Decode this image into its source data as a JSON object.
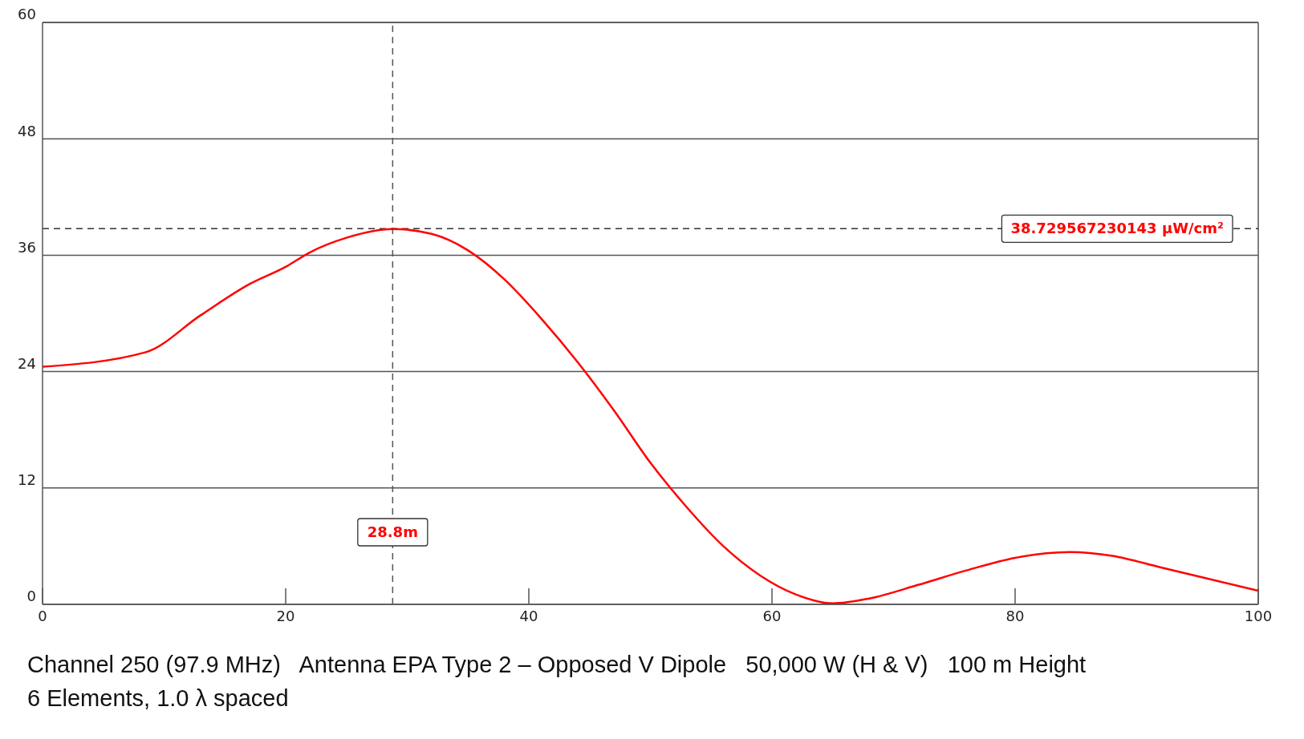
{
  "chart_data": {
    "type": "line",
    "x": [
      0,
      8.5,
      13,
      17,
      20,
      22,
      25,
      28.8,
      32,
      35,
      38,
      41,
      44,
      47,
      50,
      53,
      56,
      59,
      62,
      65,
      68,
      72,
      76,
      80,
      84.5,
      88,
      92,
      96,
      100
    ],
    "series": [
      {
        "color": "#ff0000",
        "values": [
          24.5,
          26,
          29.8,
          33,
          34.8,
          36.3,
          37.8,
          38.7,
          38.2,
          36.5,
          33.5,
          29.5,
          25,
          20,
          14.6,
          10,
          6,
          3,
          1,
          0.1,
          0.6,
          2,
          3.5,
          4.8,
          5.4,
          5,
          3.8,
          2.6,
          1.4
        ]
      }
    ],
    "xlim": [
      0,
      100
    ],
    "xticks": [
      0,
      20,
      40,
      60,
      80,
      100
    ],
    "ylim": [
      0,
      60
    ],
    "yticks": [
      0,
      12,
      24,
      36,
      48,
      60
    ],
    "grid": "y",
    "marker": "none",
    "line_style": "solid",
    "ref_lines": [
      {
        "axis": "x",
        "value": 28.8,
        "label": "28.8m",
        "color": "#555555",
        "line_style": "dashed"
      },
      {
        "axis": "y",
        "value": 38.729567230143,
        "label": "38.729567230143 μW/cm²",
        "color": "#333333",
        "line_style": "dashed"
      }
    ],
    "annotations": [
      "Channel 250 (97.9 MHz)   Antenna EPA Type 2 – Opposed V Dipole   50,000 W (H & V)   100 m Height",
      "6 Elements, 1.0 λ spaced"
    ]
  }
}
